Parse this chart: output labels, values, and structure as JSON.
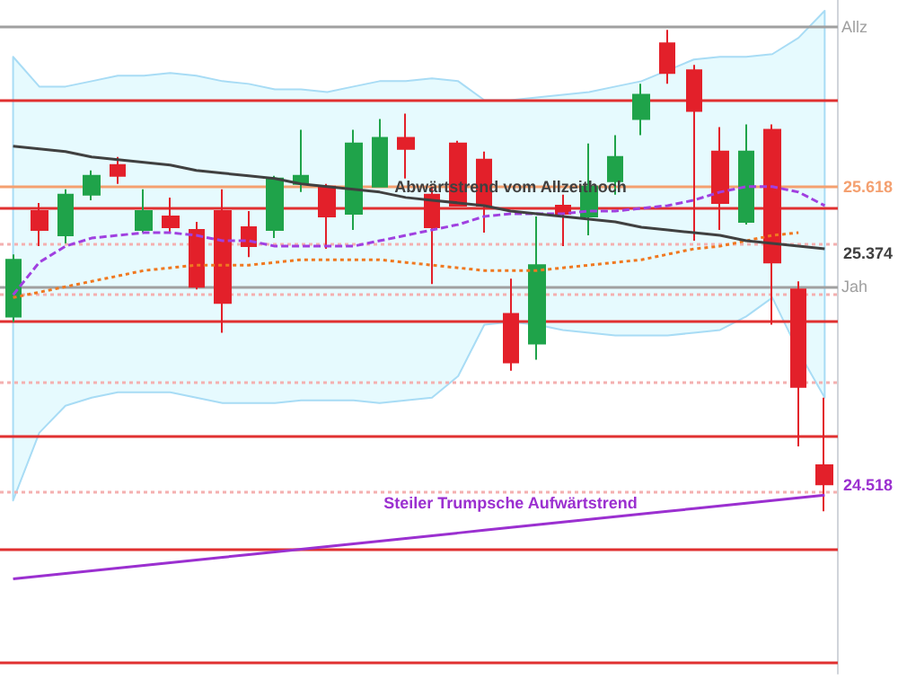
{
  "chart_data": {
    "type": "candlestick",
    "categories": [
      null,
      null,
      null,
      null,
      null,
      null,
      null,
      null,
      null,
      null,
      null,
      null,
      null,
      null,
      null,
      null,
      null,
      null,
      null,
      null,
      null,
      null,
      null,
      null,
      null,
      null,
      null,
      null,
      null,
      null,
      null,
      null
    ],
    "ohlc": [
      [
        25.14,
        25.37,
        25.12,
        25.35
      ],
      [
        25.53,
        25.56,
        25.4,
        25.46
      ],
      [
        25.44,
        25.61,
        25.41,
        25.59
      ],
      [
        25.59,
        25.68,
        25.57,
        25.66
      ],
      [
        25.7,
        25.73,
        25.63,
        25.66
      ],
      [
        25.46,
        25.61,
        25.45,
        25.53
      ],
      [
        25.51,
        25.58,
        25.45,
        25.47
      ],
      [
        25.46,
        25.49,
        25.24,
        25.25
      ],
      [
        25.53,
        25.61,
        25.08,
        25.19
      ],
      [
        25.47,
        25.53,
        25.36,
        25.4
      ],
      [
        25.46,
        25.66,
        25.43,
        25.65
      ],
      [
        25.63,
        25.83,
        25.6,
        25.66
      ],
      [
        25.62,
        25.63,
        25.39,
        25.51
      ],
      [
        25.52,
        25.83,
        25.46,
        25.78
      ],
      [
        25.62,
        25.87,
        25.62,
        25.8
      ],
      [
        25.8,
        25.89,
        25.65,
        25.76
      ],
      [
        25.59,
        25.62,
        25.26,
        25.47
      ],
      [
        25.78,
        25.79,
        25.55,
        25.55
      ],
      [
        25.72,
        25.75,
        25.45,
        25.55
      ],
      [
        25.15,
        25.28,
        24.94,
        24.97
      ],
      [
        25.04,
        25.51,
        24.98,
        25.33
      ],
      [
        25.55,
        25.59,
        25.4,
        25.52
      ],
      [
        25.51,
        25.78,
        25.44,
        25.62
      ],
      [
        25.64,
        25.81,
        25.59,
        25.73
      ],
      [
        25.87,
        26.0,
        25.81,
        25.96
      ],
      [
        26.15,
        26.2,
        26.0,
        26.04
      ],
      [
        26.05,
        26.07,
        25.42,
        25.9
      ],
      [
        25.75,
        25.84,
        25.46,
        25.56
      ],
      [
        25.49,
        25.85,
        25.48,
        25.75
      ],
      [
        25.83,
        25.85,
        25.11,
        25.34
      ],
      [
        25.24,
        25.27,
        24.66,
        24.88
      ],
      [
        24.59,
        24.84,
        24.42,
        24.52
      ]
    ],
    "colors": [
      "#1fa34a",
      "#e3202a",
      "#1fa34a",
      "#1fa34a",
      "#e3202a",
      "#1fa34a",
      "#e3202a",
      "#e3202a",
      "#e3202a",
      "#e3202a",
      "#1fa34a",
      "#1fa34a",
      "#e3202a",
      "#1fa34a",
      "#1fa34a",
      "#e3202a",
      "#e3202a",
      "#e3202a",
      "#e3202a",
      "#e3202a",
      "#1fa34a",
      "#e3202a",
      "#1fa34a",
      "#1fa34a",
      "#1fa34a",
      "#e3202a",
      "#e3202a",
      "#e3202a",
      "#1fa34a",
      "#e3202a",
      "#e3202a",
      "#e3202a"
    ],
    "ylim": [
      23.82,
      26.31
    ],
    "yticks": [
      24.518,
      25.374,
      25.618
    ],
    "series": [
      {
        "type": "line",
        "color": "#a040e0",
        "line_style": "dashed",
        "values": [
          25.22,
          25.34,
          25.4,
          25.43,
          25.44,
          25.45,
          25.45,
          25.44,
          25.42,
          25.42,
          25.4,
          25.4,
          25.4,
          25.4,
          25.42,
          25.44,
          25.46,
          25.48,
          25.51,
          25.52,
          25.52,
          25.52,
          25.53,
          25.53,
          25.54,
          25.55,
          25.57,
          25.6,
          25.62,
          25.62,
          25.6,
          25.55
        ],
        "lower": [
          24.46,
          24.71,
          24.81,
          24.84,
          24.86,
          24.86,
          24.86,
          24.84,
          24.82,
          24.82,
          24.82,
          24.83,
          24.83,
          24.83,
          24.82,
          24.83,
          24.84,
          24.92,
          25.11,
          25.12,
          25.11,
          25.09,
          25.08,
          25.07,
          25.07,
          25.07,
          25.08,
          25.09,
          25.14,
          25.21,
          25.01,
          24.84
        ],
        "upper": [
          26.1,
          25.99,
          25.99,
          26.01,
          26.03,
          26.03,
          26.04,
          26.03,
          26.01,
          26.0,
          25.98,
          25.98,
          25.97,
          25.99,
          26.01,
          26.01,
          26.02,
          26.01,
          25.94,
          25.94,
          25.95,
          25.96,
          25.97,
          25.99,
          26.01,
          26.05,
          26.09,
          26.1,
          26.1,
          26.11,
          26.17,
          26.27
        ]
      },
      {
        "type": "line",
        "color": "#f07820",
        "line_style": "dotted",
        "values": [
          25.21,
          25.23,
          25.25,
          25.27,
          25.29,
          25.31,
          25.32,
          25.33,
          25.33,
          25.33,
          25.34,
          25.35,
          25.35,
          25.35,
          25.35,
          25.34,
          25.33,
          25.32,
          25.31,
          25.31,
          25.31,
          25.32,
          25.33,
          25.34,
          25.35,
          25.37,
          25.39,
          25.4,
          25.42,
          25.44,
          25.45,
          null
        ]
      },
      {
        "type": "line",
        "name": "Abwärtstrend vom Allzeithoch",
        "color": "#404040",
        "values": [
          25.77,
          25.76,
          25.75,
          25.73,
          25.72,
          25.71,
          25.7,
          25.68,
          25.67,
          25.66,
          25.65,
          25.63,
          25.62,
          25.61,
          25.6,
          25.58,
          25.57,
          25.56,
          25.55,
          25.53,
          25.52,
          25.51,
          25.5,
          25.49,
          25.47,
          25.46,
          25.45,
          25.44,
          25.42,
          25.41,
          25.4,
          25.39
        ]
      },
      {
        "type": "line",
        "name": "Steiler Trumpsche Aufwärtstrend",
        "color": "#9b30d0",
        "values": [
          24.17,
          24.18,
          24.19,
          24.2,
          24.21,
          24.22,
          24.23,
          24.24,
          24.25,
          24.26,
          24.27,
          24.28,
          24.29,
          24.3,
          24.31,
          24.32,
          24.33,
          24.34,
          24.35,
          24.36,
          24.37,
          24.38,
          24.39,
          24.4,
          24.41,
          24.42,
          24.43,
          24.44,
          24.45,
          24.46,
          24.47,
          24.48
        ]
      }
    ],
    "ref_lines": [
      {
        "axis": "y",
        "value": 26.21,
        "label": "Allz",
        "color": "#a0a0a0"
      },
      {
        "axis": "y",
        "value": 25.25,
        "label": "Jah",
        "color": "#a0a0a0"
      },
      {
        "axis": "y",
        "value": 25.618,
        "color": "#f4a070"
      },
      {
        "axis": "y",
        "value": 25.94,
        "color": "#e03030"
      },
      {
        "axis": "y",
        "value": 25.54,
        "color": "#e03030"
      },
      {
        "axis": "y",
        "value": 25.12,
        "color": "#e03030"
      },
      {
        "axis": "y",
        "value": 24.7,
        "color": "#e03030"
      },
      {
        "axis": "y",
        "value": 24.28,
        "color": "#e03030"
      },
      {
        "axis": "y",
        "value": 23.86,
        "color": "#e03030"
      },
      {
        "axis": "y",
        "value": 25.41,
        "color": "#f4b0b0",
        "line_style": "dotted"
      },
      {
        "axis": "y",
        "value": 25.22,
        "color": "#f4b0b0",
        "line_style": "dotted"
      },
      {
        "axis": "y",
        "value": 24.9,
        "color": "#f4b0b0",
        "line_style": "dotted"
      },
      {
        "axis": "y",
        "value": 24.49,
        "color": "#f4b0b0",
        "line_style": "dotted"
      }
    ]
  }
}
